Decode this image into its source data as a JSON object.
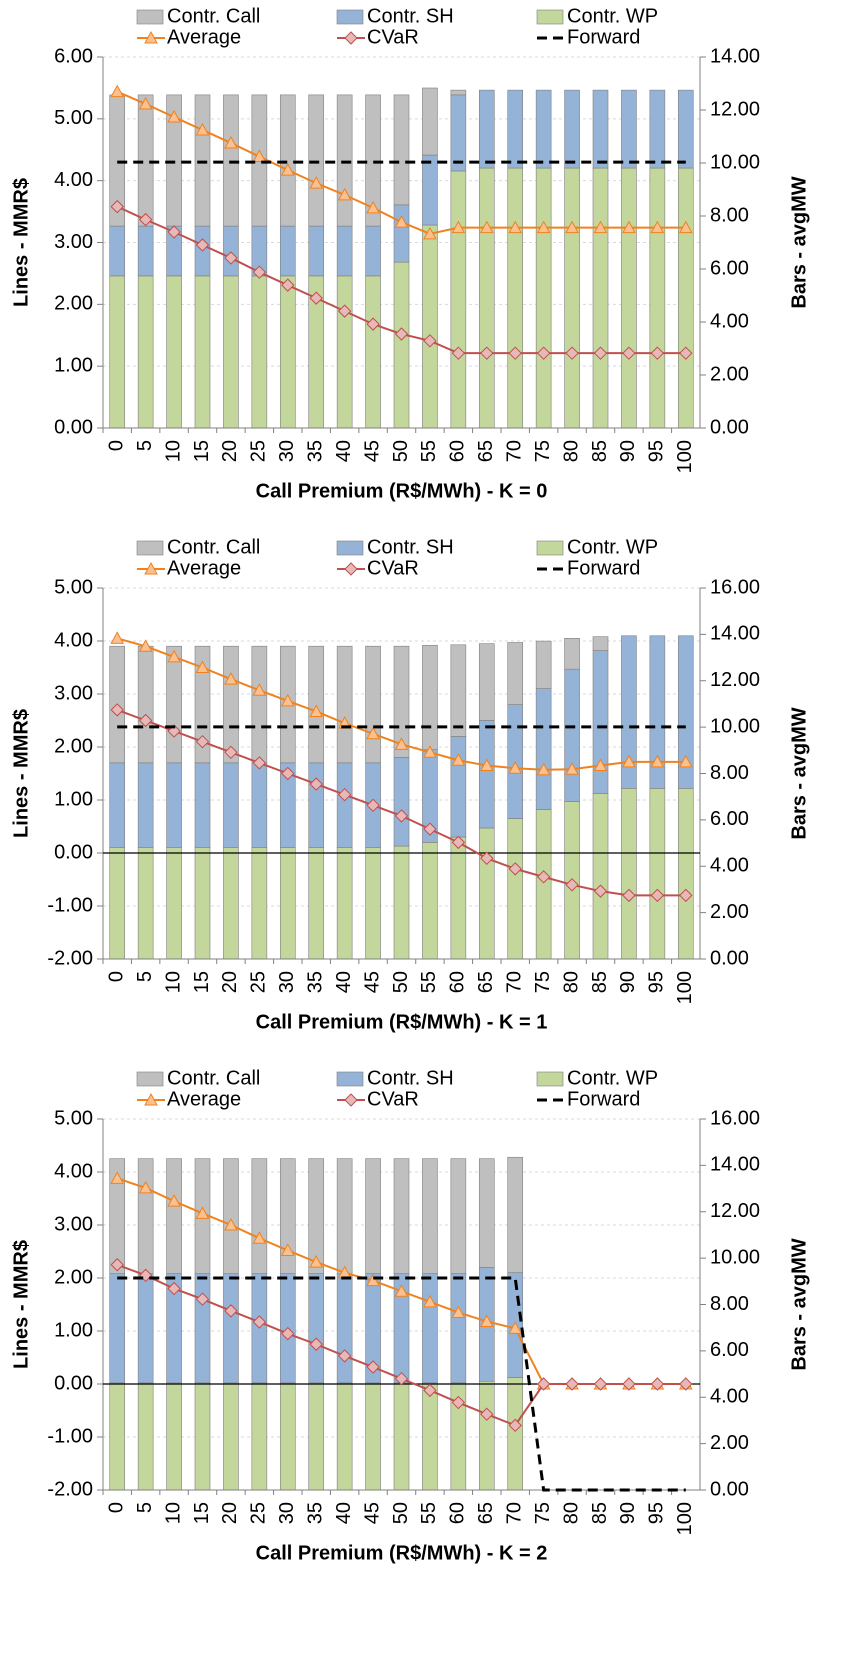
{
  "chart_data": [
    {
      "type": "combo",
      "xlabel": "Call Premium (R$/MWh) - K = 0",
      "ylabel": "Lines - MMR$",
      "y2label": "Bars - avgMW",
      "categories": [
        "0",
        "5",
        "10",
        "15",
        "20",
        "25",
        "30",
        "35",
        "40",
        "45",
        "50",
        "55",
        "60",
        "65",
        "70",
        "75",
        "80",
        "85",
        "90",
        "95",
        "100"
      ],
      "ylim": [
        0,
        6
      ],
      "yticks": [
        {
          "value": 0,
          "label": "0.00"
        },
        {
          "value": 1,
          "label": "1.00"
        },
        {
          "value": 2,
          "label": "2.00"
        },
        {
          "value": 3,
          "label": "3.00"
        },
        {
          "value": 4,
          "label": "4.00"
        },
        {
          "value": 5,
          "label": "5.00"
        },
        {
          "value": 6,
          "label": "6.00"
        }
      ],
      "y2lim": [
        0,
        14
      ],
      "y2ticks": [
        {
          "value": 0,
          "label": "0.00"
        },
        {
          "value": 2,
          "label": "2.00"
        },
        {
          "value": 4,
          "label": "4.00"
        },
        {
          "value": 6,
          "label": "6.00"
        },
        {
          "value": 8,
          "label": "8.00"
        },
        {
          "value": 10,
          "label": "10.00"
        },
        {
          "value": 12,
          "label": "12.00"
        },
        {
          "value": 14,
          "label": "14.00"
        }
      ],
      "grid": true,
      "series": [
        {
          "name": "Contr. Call",
          "kind": "bar",
          "axis": "y2",
          "color": "#bfbfbf",
          "values": [
            4.95,
            4.95,
            4.95,
            4.95,
            4.95,
            4.95,
            4.95,
            4.95,
            4.95,
            4.95,
            4.15,
            2.53,
            0.18,
            0,
            0,
            0,
            0,
            0,
            0,
            0,
            0
          ]
        },
        {
          "name": "Contr. SH",
          "kind": "bar",
          "axis": "y2",
          "color": "#95b3d7",
          "values": [
            1.88,
            1.88,
            1.88,
            1.88,
            1.88,
            1.88,
            1.88,
            1.88,
            1.88,
            1.88,
            2.16,
            2.64,
            2.87,
            2.94,
            2.94,
            2.94,
            2.94,
            2.94,
            2.94,
            2.94,
            2.94
          ]
        },
        {
          "name": "Contr. WP",
          "kind": "bar",
          "axis": "y2",
          "color": "#c3d69b",
          "values": [
            5.74,
            5.74,
            5.74,
            5.74,
            5.74,
            5.74,
            5.74,
            5.74,
            5.74,
            5.74,
            6.26,
            7.66,
            9.7,
            9.81,
            9.81,
            9.81,
            9.81,
            9.81,
            9.81,
            9.81,
            9.81
          ]
        },
        {
          "name": "Average",
          "kind": "line",
          "color": "#f0821e",
          "marker": "triangle",
          "marker_color": "#fac090",
          "values": [
            5.44,
            5.24,
            5.03,
            4.82,
            4.61,
            4.39,
            4.17,
            3.96,
            3.77,
            3.56,
            3.33,
            3.14,
            3.24,
            3.24,
            3.24,
            3.24,
            3.24,
            3.24,
            3.24,
            3.24,
            3.24
          ]
        },
        {
          "name": "CVaR",
          "kind": "line",
          "color": "#c0504d",
          "marker": "diamond",
          "marker_color": "#e6b9b8",
          "values": [
            3.58,
            3.37,
            3.17,
            2.96,
            2.75,
            2.52,
            2.31,
            2.1,
            1.89,
            1.68,
            1.52,
            1.41,
            1.21,
            1.21,
            1.21,
            1.21,
            1.21,
            1.21,
            1.21,
            1.21,
            1.21
          ]
        },
        {
          "name": "Forward",
          "kind": "line",
          "color": "#000000",
          "dashed": true,
          "values": [
            4.3,
            4.3,
            4.3,
            4.3,
            4.3,
            4.3,
            4.3,
            4.3,
            4.3,
            4.3,
            4.3,
            4.3,
            4.3,
            4.3,
            4.3,
            4.3,
            4.3,
            4.3,
            4.3,
            4.3,
            4.3
          ]
        }
      ]
    },
    {
      "type": "combo",
      "xlabel": "Call Premium (R$/MWh) - K = 1",
      "ylabel": "Lines - MMR$",
      "y2label": "Bars - avgMW",
      "categories": [
        "0",
        "5",
        "10",
        "15",
        "20",
        "25",
        "30",
        "35",
        "40",
        "45",
        "50",
        "55",
        "60",
        "65",
        "70",
        "75",
        "80",
        "85",
        "90",
        "95",
        "100"
      ],
      "ylim": [
        -2,
        5
      ],
      "yticks": [
        {
          "value": -2,
          "label": "-2.00"
        },
        {
          "value": -1,
          "label": "-1.00"
        },
        {
          "value": 0,
          "label": "0.00"
        },
        {
          "value": 1,
          "label": "1.00"
        },
        {
          "value": 2,
          "label": "2.00"
        },
        {
          "value": 3,
          "label": "3.00"
        },
        {
          "value": 4,
          "label": "4.00"
        },
        {
          "value": 5,
          "label": "5.00"
        }
      ],
      "y2lim": [
        0,
        16
      ],
      "y2ticks": [
        {
          "value": 0,
          "label": "0.00"
        },
        {
          "value": 2,
          "label": "2.00"
        },
        {
          "value": 4,
          "label": "4.00"
        },
        {
          "value": 6,
          "label": "6.00"
        },
        {
          "value": 8,
          "label": "8.00"
        },
        {
          "value": 10,
          "label": "10.00"
        },
        {
          "value": 12,
          "label": "12.00"
        },
        {
          "value": 14,
          "label": "14.00"
        },
        {
          "value": 16,
          "label": "16.00"
        }
      ],
      "grid": true,
      "series": [
        {
          "name": "Contr. Call",
          "kind": "bar",
          "axis": "y2",
          "color": "#bfbfbf",
          "values": [
            5.03,
            5.03,
            5.03,
            5.03,
            5.03,
            5.03,
            5.03,
            5.03,
            5.03,
            5.03,
            4.8,
            4.5,
            3.95,
            3.31,
            2.68,
            2.05,
            1.33,
            0.6,
            0,
            0,
            0
          ]
        },
        {
          "name": "Contr. SH",
          "kind": "bar",
          "axis": "y2",
          "color": "#95b3d7",
          "values": [
            3.66,
            3.66,
            3.66,
            3.66,
            3.66,
            3.66,
            3.66,
            3.66,
            3.66,
            3.66,
            3.82,
            4.0,
            4.34,
            4.64,
            4.91,
            5.21,
            5.71,
            6.17,
            6.58,
            6.58,
            6.58
          ]
        },
        {
          "name": "Contr. WP",
          "kind": "bar",
          "axis": "y2",
          "color": "#c3d69b",
          "values": [
            4.8,
            4.8,
            4.8,
            4.8,
            4.8,
            4.8,
            4.8,
            4.8,
            4.8,
            4.8,
            4.87,
            5.03,
            5.26,
            5.65,
            6.06,
            6.45,
            6.79,
            7.13,
            7.36,
            7.36,
            7.36
          ]
        },
        {
          "name": "Average",
          "kind": "line",
          "color": "#f0821e",
          "marker": "triangle",
          "marker_color": "#fac090",
          "values": [
            4.05,
            3.9,
            3.7,
            3.5,
            3.28,
            3.07,
            2.87,
            2.67,
            2.45,
            2.25,
            2.05,
            1.9,
            1.75,
            1.65,
            1.6,
            1.57,
            1.58,
            1.65,
            1.72,
            1.72,
            1.72
          ]
        },
        {
          "name": "CVaR",
          "kind": "line",
          "color": "#c0504d",
          "marker": "diamond",
          "marker_color": "#e6b9b8",
          "values": [
            2.7,
            2.5,
            2.3,
            2.1,
            1.9,
            1.7,
            1.5,
            1.3,
            1.1,
            0.9,
            0.7,
            0.45,
            0.2,
            -0.1,
            -0.3,
            -0.45,
            -0.6,
            -0.72,
            -0.8,
            -0.8,
            -0.8
          ]
        },
        {
          "name": "Forward",
          "kind": "line",
          "color": "#000000",
          "dashed": true,
          "values": [
            2.38,
            2.38,
            2.38,
            2.38,
            2.38,
            2.38,
            2.38,
            2.38,
            2.38,
            2.38,
            2.38,
            2.38,
            2.38,
            2.38,
            2.38,
            2.38,
            2.38,
            2.38,
            2.38,
            2.38,
            2.38
          ]
        }
      ]
    },
    {
      "type": "combo",
      "xlabel": "Call Premium (R$/MWh) - K = 2",
      "ylabel": "Lines - MMR$",
      "y2label": "Bars - avgMW",
      "categories": [
        "0",
        "5",
        "10",
        "15",
        "20",
        "25",
        "30",
        "35",
        "40",
        "45",
        "50",
        "55",
        "60",
        "65",
        "70",
        "75",
        "80",
        "85",
        "90",
        "95",
        "100"
      ],
      "ylim": [
        -2,
        5
      ],
      "yticks": [
        {
          "value": -2,
          "label": "-2.00"
        },
        {
          "value": -1,
          "label": "-1.00"
        },
        {
          "value": 0,
          "label": "0.00"
        },
        {
          "value": 1,
          "label": "1.00"
        },
        {
          "value": 2,
          "label": "2.00"
        },
        {
          "value": 3,
          "label": "3.00"
        },
        {
          "value": 4,
          "label": "4.00"
        },
        {
          "value": 5,
          "label": "5.00"
        }
      ],
      "y2lim": [
        0,
        16
      ],
      "y2ticks": [
        {
          "value": 0,
          "label": "0.00"
        },
        {
          "value": 2,
          "label": "2.00"
        },
        {
          "value": 4,
          "label": "4.00"
        },
        {
          "value": 6,
          "label": "6.00"
        },
        {
          "value": 8,
          "label": "8.00"
        },
        {
          "value": 10,
          "label": "10.00"
        },
        {
          "value": 12,
          "label": "12.00"
        },
        {
          "value": 14,
          "label": "14.00"
        },
        {
          "value": 16,
          "label": "16.00"
        }
      ],
      "grid": true,
      "series": [
        {
          "name": "Contr. Call",
          "kind": "bar",
          "axis": "y2",
          "color": "#bfbfbf",
          "values": [
            4.96,
            4.96,
            4.96,
            4.96,
            4.96,
            4.96,
            4.96,
            4.96,
            4.96,
            4.96,
            4.96,
            4.96,
            4.96,
            4.69,
            4.98,
            0,
            0,
            0,
            0,
            0,
            0
          ]
        },
        {
          "name": "Contr. SH",
          "kind": "bar",
          "axis": "y2",
          "color": "#95b3d7",
          "values": [
            4.71,
            4.71,
            4.71,
            4.71,
            4.71,
            4.71,
            4.71,
            4.71,
            4.71,
            4.71,
            4.71,
            4.71,
            4.71,
            4.91,
            4.52,
            0,
            0,
            0,
            0,
            0,
            0
          ]
        },
        {
          "name": "Contr. WP",
          "kind": "bar",
          "axis": "y2",
          "color": "#c3d69b",
          "values": [
            4.62,
            4.62,
            4.62,
            4.62,
            4.62,
            4.62,
            4.62,
            4.62,
            4.62,
            4.62,
            4.62,
            4.62,
            4.62,
            4.69,
            4.85,
            0,
            0,
            0,
            0,
            0,
            0
          ]
        },
        {
          "name": "Average",
          "kind": "line",
          "color": "#f0821e",
          "marker": "triangle",
          "marker_color": "#fac090",
          "values": [
            3.88,
            3.7,
            3.45,
            3.22,
            3.0,
            2.75,
            2.52,
            2.3,
            2.1,
            1.95,
            1.75,
            1.55,
            1.35,
            1.18,
            1.05,
            0,
            0,
            0,
            0,
            0,
            0
          ]
        },
        {
          "name": "CVaR",
          "kind": "line",
          "color": "#c0504d",
          "marker": "diamond",
          "marker_color": "#e6b9b8",
          "values": [
            2.25,
            2.05,
            1.8,
            1.6,
            1.38,
            1.17,
            0.95,
            0.75,
            0.53,
            0.32,
            0.1,
            -0.12,
            -0.35,
            -0.57,
            -0.78,
            0,
            0,
            0,
            0,
            0,
            0
          ]
        },
        {
          "name": "Forward",
          "kind": "line",
          "color": "#000000",
          "dashed": true,
          "values": [
            2.0,
            2.0,
            2.0,
            2.0,
            2.0,
            2.0,
            2.0,
            2.0,
            2.0,
            2.0,
            2.0,
            2.0,
            2.0,
            2.0,
            2.0,
            -2,
            -2,
            -2,
            -2,
            -2,
            -2
          ]
        }
      ]
    }
  ]
}
